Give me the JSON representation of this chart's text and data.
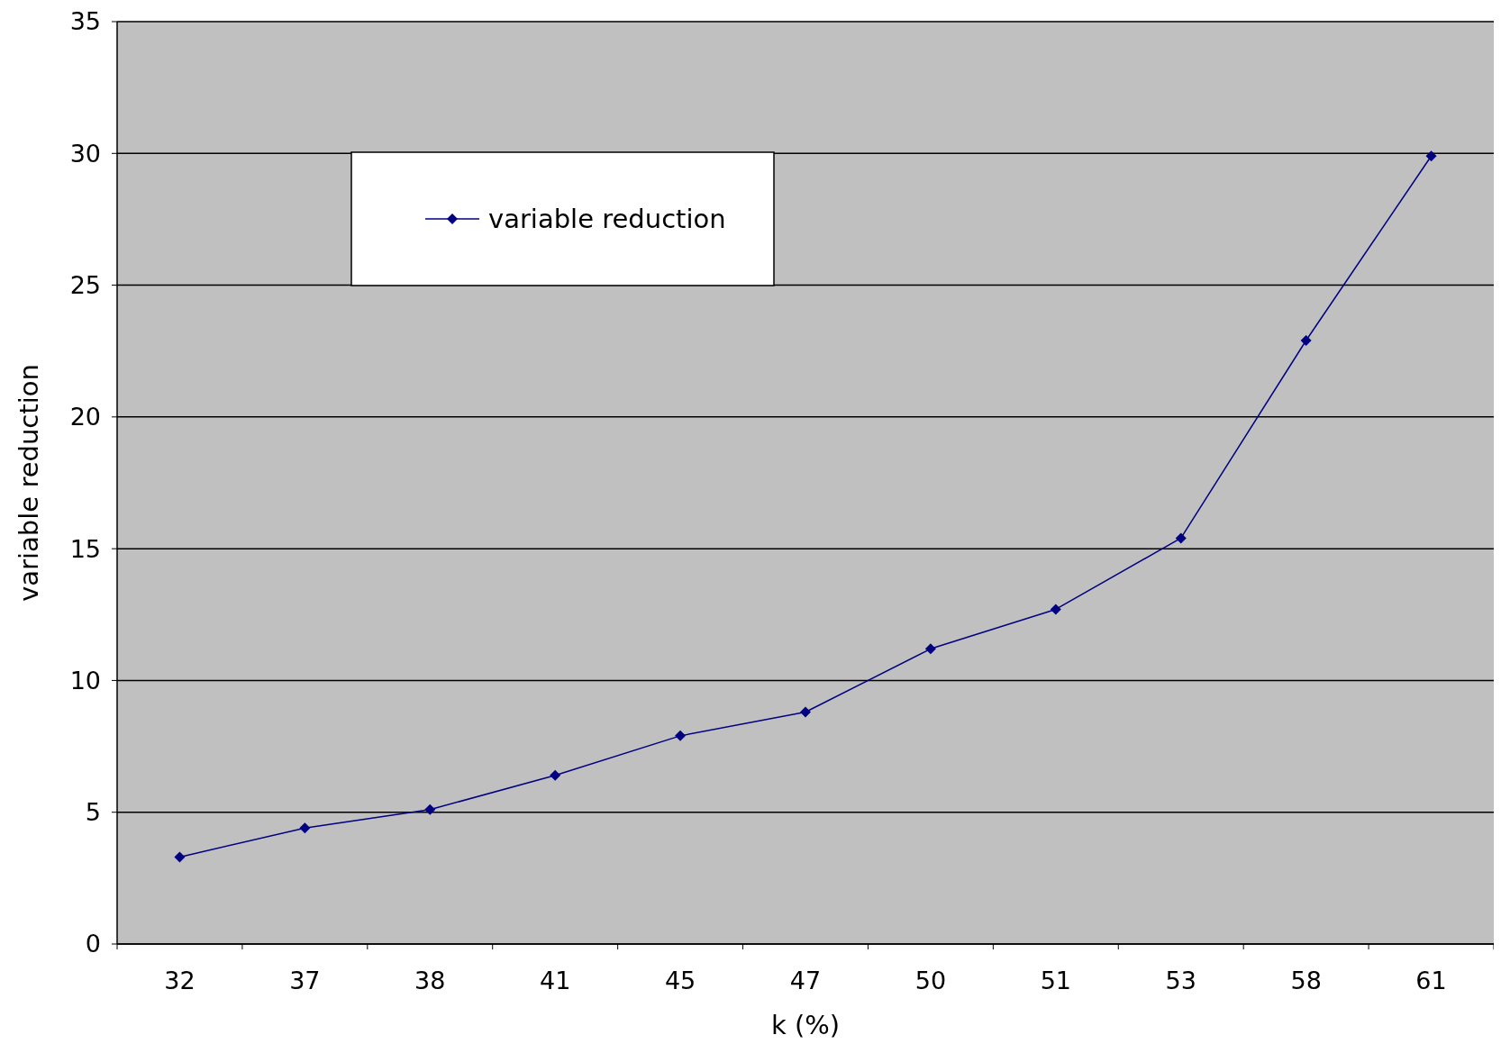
{
  "chart_data": {
    "type": "line",
    "xlabel": "k (%)",
    "ylabel": "variable reduction",
    "categories": [
      "32",
      "37",
      "38",
      "41",
      "45",
      "47",
      "50",
      "51",
      "53",
      "58",
      "61"
    ],
    "series": [
      {
        "name": "variable reduction",
        "color": "#000080",
        "values": [
          3.3,
          4.4,
          5.1,
          6.4,
          7.9,
          8.8,
          11.2,
          12.7,
          15.4,
          22.9,
          29.9
        ]
      }
    ],
    "ylim": [
      0,
      35
    ],
    "yticks": [
      0,
      5,
      10,
      15,
      20,
      25,
      30,
      35
    ],
    "grid": "y",
    "legend": "top left",
    "marker": "diamond",
    "line_style": "solid"
  }
}
